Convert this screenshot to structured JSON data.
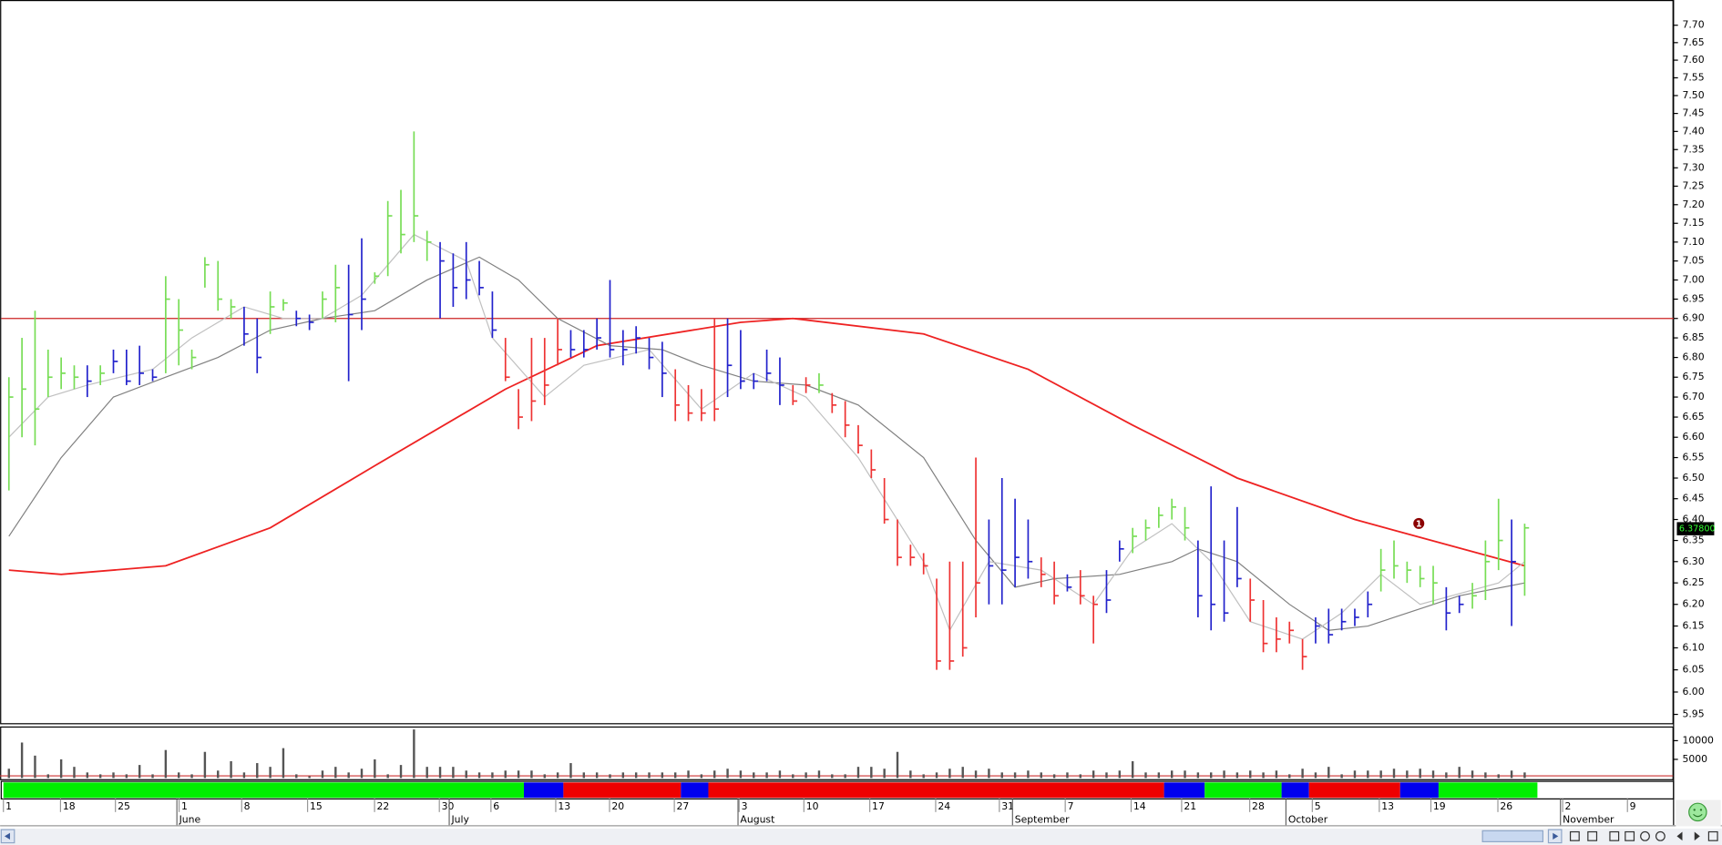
{
  "chart_data": {
    "type": "ohlc",
    "log_scale": true,
    "ylim": [
      5.928,
      7.773
    ],
    "yticks": [
      {
        "value": 7.7,
        "label": "7.70"
      },
      7.65,
      {
        "value": 7.6,
        "label": "7.60"
      },
      7.55,
      {
        "value": 7.5,
        "label": "7.50"
      },
      7.45,
      {
        "value": 7.4,
        "label": "7.40"
      },
      7.35,
      {
        "value": 7.3,
        "label": "7.30"
      },
      7.25,
      {
        "value": 7.2,
        "label": "7.20"
      },
      7.15,
      {
        "value": 7.1,
        "label": "7.10"
      },
      7.05,
      {
        "value": 7,
        "label": "7.00"
      },
      6.95,
      {
        "value": 6.9,
        "label": "6.90"
      },
      6.85,
      {
        "value": 6.8,
        "label": "6.80"
      },
      6.75,
      {
        "value": 6.7,
        "label": "6.70"
      },
      6.65,
      {
        "value": 6.6,
        "label": "6.60"
      },
      6.55,
      {
        "value": 6.5,
        "label": "6.50"
      },
      6.45,
      {
        "value": 6.4,
        "label": "6.40"
      },
      6.35,
      {
        "value": 6.3,
        "label": "6.30"
      },
      6.25,
      {
        "value": 6.2,
        "label": "6.20"
      },
      6.15,
      {
        "value": 6.1,
        "label": "6.10"
      },
      6.05,
      {
        "value": 6,
        "label": "6.00"
      },
      5.95
    ],
    "high": [
      6.75,
      6.85,
      6.92,
      6.82,
      6.8,
      6.78,
      6.78,
      6.78,
      6.82,
      6.82,
      6.83,
      6.77,
      7.01,
      6.95,
      6.82,
      7.06,
      7.05,
      6.95,
      6.93,
      6.9,
      6.97,
      6.95,
      6.92,
      6.91,
      6.97,
      7.04,
      7.04,
      7.11,
      7.02,
      7.21,
      7.24,
      7.4,
      7.13,
      7.1,
      7.07,
      7.1,
      7.05,
      6.97,
      6.85,
      6.72,
      6.85,
      6.85,
      6.9,
      6.87,
      6.87,
      6.9,
      7.0,
      6.87,
      6.88,
      6.85,
      6.84,
      6.77,
      6.73,
      6.72,
      6.9,
      6.9,
      6.87,
      6.76,
      6.82,
      6.8,
      6.73,
      6.75,
      6.76,
      6.71,
      6.69,
      6.63,
      6.57,
      6.5,
      6.4,
      6.34,
      6.32,
      6.26,
      6.3,
      6.3,
      6.55,
      6.4,
      6.5,
      6.45,
      6.4,
      6.31,
      6.3,
      6.27,
      6.28,
      6.22,
      6.28,
      6.35,
      6.38,
      6.4,
      6.43,
      6.45,
      6.43,
      6.35,
      6.48,
      6.35,
      6.43,
      6.26,
      6.21,
      6.17,
      6.16,
      6.12,
      6.17,
      6.19,
      6.19,
      6.19,
      6.23,
      6.33,
      6.35,
      6.3,
      6.29,
      6.29,
      6.24,
      6.22,
      6.25,
      6.35,
      6.45,
      6.4,
      6.39
    ],
    "low": [
      6.47,
      6.6,
      6.58,
      6.7,
      6.72,
      6.72,
      6.7,
      6.73,
      6.76,
      6.73,
      6.73,
      6.74,
      6.76,
      6.78,
      6.77,
      6.98,
      6.92,
      6.9,
      6.83,
      6.76,
      6.86,
      6.92,
      6.88,
      6.87,
      6.9,
      6.89,
      6.74,
      6.87,
      6.99,
      7.01,
      7.07,
      7.1,
      7.05,
      6.9,
      6.93,
      6.95,
      6.96,
      6.85,
      6.74,
      6.62,
      6.64,
      6.68,
      6.78,
      6.8,
      6.8,
      6.82,
      6.8,
      6.78,
      6.81,
      6.77,
      6.7,
      6.64,
      6.64,
      6.64,
      6.64,
      6.7,
      6.72,
      6.72,
      6.74,
      6.68,
      6.68,
      6.71,
      6.71,
      6.66,
      6.6,
      6.56,
      6.5,
      6.39,
      6.29,
      6.29,
      6.27,
      6.05,
      6.05,
      6.08,
      6.17,
      6.2,
      6.2,
      6.24,
      6.26,
      6.24,
      6.2,
      6.23,
      6.2,
      6.11,
      6.18,
      6.3,
      6.32,
      6.35,
      6.38,
      6.4,
      6.35,
      6.17,
      6.14,
      6.16,
      6.24,
      6.16,
      6.09,
      6.09,
      6.11,
      6.05,
      6.11,
      6.11,
      6.14,
      6.15,
      6.17,
      6.23,
      6.26,
      6.25,
      6.24,
      6.2,
      6.14,
      6.18,
      6.19,
      6.21,
      6.28,
      6.15,
      6.22
    ],
    "close": [
      6.7,
      6.72,
      6.67,
      6.75,
      6.76,
      6.75,
      6.74,
      6.76,
      6.79,
      6.74,
      6.76,
      6.75,
      6.95,
      6.87,
      6.8,
      7.04,
      6.95,
      6.93,
      6.86,
      6.8,
      6.93,
      6.94,
      6.9,
      6.89,
      6.95,
      6.98,
      6.91,
      6.95,
      7.01,
      7.17,
      7.12,
      7.17,
      7.1,
      7.05,
      6.98,
      7.0,
      6.98,
      6.87,
      6.75,
      6.65,
      6.69,
      6.73,
      6.82,
      6.82,
      6.82,
      6.85,
      6.82,
      6.82,
      6.85,
      6.8,
      6.76,
      6.68,
      6.66,
      6.66,
      6.67,
      6.78,
      6.74,
      6.74,
      6.76,
      6.73,
      6.69,
      6.73,
      6.73,
      6.68,
      6.63,
      6.58,
      6.52,
      6.4,
      6.31,
      6.31,
      6.29,
      6.07,
      6.07,
      6.1,
      6.25,
      6.29,
      6.28,
      6.31,
      6.3,
      6.27,
      6.22,
      6.24,
      6.22,
      6.2,
      6.21,
      6.33,
      6.36,
      6.38,
      6.41,
      6.43,
      6.38,
      6.22,
      6.2,
      6.18,
      6.26,
      6.21,
      6.11,
      6.12,
      6.14,
      6.08,
      6.15,
      6.13,
      6.16,
      6.17,
      6.2,
      6.28,
      6.29,
      6.28,
      6.26,
      6.25,
      6.18,
      6.2,
      6.22,
      6.3,
      6.35,
      6.3,
      6.38
    ],
    "colors": [
      "#77dd55",
      "#77dd55",
      "#77dd55",
      "#77dd55",
      "#77dd55",
      "#77dd55",
      "#2222cc",
      "#77dd55",
      "#2222cc",
      "#2222cc",
      "#2222cc",
      "#2222cc",
      "#77dd55",
      "#77dd55",
      "#77dd55",
      "#77dd55",
      "#77dd55",
      "#77dd55",
      "#2222cc",
      "#2222cc",
      "#77dd55",
      "#77dd55",
      "#2222cc",
      "#2222cc",
      "#77dd55",
      "#77dd55",
      "#2222cc",
      "#2222cc",
      "#77dd55",
      "#77dd55",
      "#77dd55",
      "#77dd55",
      "#77dd55",
      "#2222cc",
      "#2222cc",
      "#2222cc",
      "#2222cc",
      "#2222cc",
      "#ee3333",
      "#ee3333",
      "#ee3333",
      "#ee3333",
      "#ee3333",
      "#2222cc",
      "#2222cc",
      "#2222cc",
      "#2222cc",
      "#2222cc",
      "#2222cc",
      "#2222cc",
      "#2222cc",
      "#ee3333",
      "#ee3333",
      "#ee3333",
      "#ee3333",
      "#2222cc",
      "#2222cc",
      "#2222cc",
      "#2222cc",
      "#2222cc",
      "#ee3333",
      "#ee3333",
      "#77dd55",
      "#ee3333",
      "#ee3333",
      "#ee3333",
      "#ee3333",
      "#ee3333",
      "#ee3333",
      "#ee3333",
      "#ee3333",
      "#ee3333",
      "#ee3333",
      "#ee3333",
      "#ee3333",
      "#2222cc",
      "#2222cc",
      "#2222cc",
      "#2222cc",
      "#ee3333",
      "#ee3333",
      "#2222cc",
      "#ee3333",
      "#ee3333",
      "#2222cc",
      "#2222cc",
      "#77dd55",
      "#77dd55",
      "#77dd55",
      "#77dd55",
      "#77dd55",
      "#2222cc",
      "#2222cc",
      "#2222cc",
      "#2222cc",
      "#ee3333",
      "#ee3333",
      "#ee3333",
      "#ee3333",
      "#ee3333",
      "#2222cc",
      "#2222cc",
      "#2222cc",
      "#2222cc",
      "#2222cc",
      "#77dd55",
      "#77dd55",
      "#77dd55",
      "#77dd55",
      "#77dd55",
      "#2222cc",
      "#2222cc",
      "#77dd55",
      "#77dd55",
      "#77dd55",
      "#2222cc",
      "#77dd55"
    ],
    "ma_series": [
      {
        "color": "#ee2222",
        "x": [
          0,
          4,
          12,
          20,
          28,
          38,
          45,
          56,
          60,
          70,
          78,
          86,
          94,
          103,
          116
        ],
        "values": [
          6.28,
          6.27,
          6.29,
          6.38,
          6.53,
          6.72,
          6.83,
          6.89,
          6.9,
          6.86,
          6.77,
          6.63,
          6.5,
          6.4,
          6.29
        ]
      },
      {
        "color": "#808080",
        "x": [
          0,
          4,
          8,
          12,
          16,
          20,
          24,
          28,
          32,
          36,
          39,
          42,
          46,
          50,
          53,
          57,
          61,
          65,
          70,
          74,
          77,
          80,
          85,
          89,
          91,
          94,
          98,
          101,
          104,
          108,
          111,
          116
        ],
        "values": [
          6.36,
          6.55,
          6.7,
          6.75,
          6.8,
          6.87,
          6.9,
          6.92,
          7.0,
          7.06,
          7.0,
          6.9,
          6.83,
          6.82,
          6.78,
          6.74,
          6.73,
          6.68,
          6.55,
          6.35,
          6.24,
          6.26,
          6.27,
          6.3,
          6.33,
          6.3,
          6.2,
          6.14,
          6.15,
          6.19,
          6.22,
          6.25
        ]
      },
      {
        "color": "#c0c0c0",
        "x": [
          0,
          3,
          6,
          11,
          14,
          18,
          21,
          24,
          27,
          31,
          35,
          37,
          41,
          44,
          49,
          53,
          57,
          61,
          65,
          70,
          72,
          75,
          79,
          83,
          86,
          89,
          92,
          95,
          99,
          102,
          105,
          108,
          114,
          116
        ],
        "values": [
          6.6,
          6.7,
          6.73,
          6.77,
          6.85,
          6.93,
          6.9,
          6.9,
          6.96,
          7.12,
          7.05,
          6.85,
          6.7,
          6.78,
          6.82,
          6.67,
          6.76,
          6.7,
          6.55,
          6.3,
          6.14,
          6.3,
          6.28,
          6.2,
          6.33,
          6.39,
          6.3,
          6.16,
          6.12,
          6.18,
          6.27,
          6.2,
          6.25,
          6.3
        ]
      }
    ],
    "hline": {
      "value": 6.9,
      "color": "#cc2222"
    },
    "last_price": {
      "value": 6.378,
      "label": "6.37800"
    },
    "annotation": "1",
    "volume": {
      "ylim": [
        0,
        13500
      ],
      "yticks": [
        10000,
        5000
      ],
      "color": "#555555",
      "values": [
        2500,
        9500,
        6000,
        1000,
        5000,
        3000,
        1500,
        1000,
        1500,
        1000,
        3500,
        1000,
        7500,
        1500,
        1000,
        7000,
        2000,
        4500,
        1500,
        4000,
        3000,
        8000,
        1000,
        500,
        2000,
        3000,
        1500,
        2500,
        5000,
        1000,
        3500,
        13000,
        3000,
        3000,
        3000,
        2000,
        1500,
        1500,
        2000,
        2000,
        2000,
        1000,
        1500,
        4000,
        1500,
        1500,
        1000,
        1500,
        1500,
        1500,
        1500,
        1500,
        2000,
        1000,
        2000,
        2500,
        2000,
        1500,
        1500,
        2000,
        1000,
        1500,
        2000,
        1000,
        1000,
        3000,
        3000,
        2500,
        7000,
        2000,
        1000,
        1500,
        2500,
        3000,
        2000,
        2500,
        1500,
        1500,
        2000,
        1500,
        1000,
        1500,
        1000,
        2000,
        1500,
        2000,
        4500,
        1500,
        1500,
        2000,
        2000,
        1500,
        1500,
        2000,
        1500,
        2000,
        1500,
        2000,
        1000,
        2500,
        1500,
        3000,
        1000,
        2000,
        2000,
        2000,
        2500,
        2000,
        2500,
        2000,
        1500,
        3000,
        2000,
        1500,
        1000,
        2000,
        1500
      ]
    },
    "x_day_labels": [
      "1",
      "18",
      "25",
      "1",
      "8",
      "15",
      "22",
      "30",
      "6",
      "13",
      "20",
      "27",
      "3",
      "10",
      "17",
      "24",
      "31",
      "7",
      "14",
      "21",
      "28",
      "5",
      "13",
      "19",
      "26",
      "2",
      "9"
    ],
    "x_month_labels": [
      "June",
      "July",
      "August",
      "September",
      "October",
      "November"
    ]
  }
}
